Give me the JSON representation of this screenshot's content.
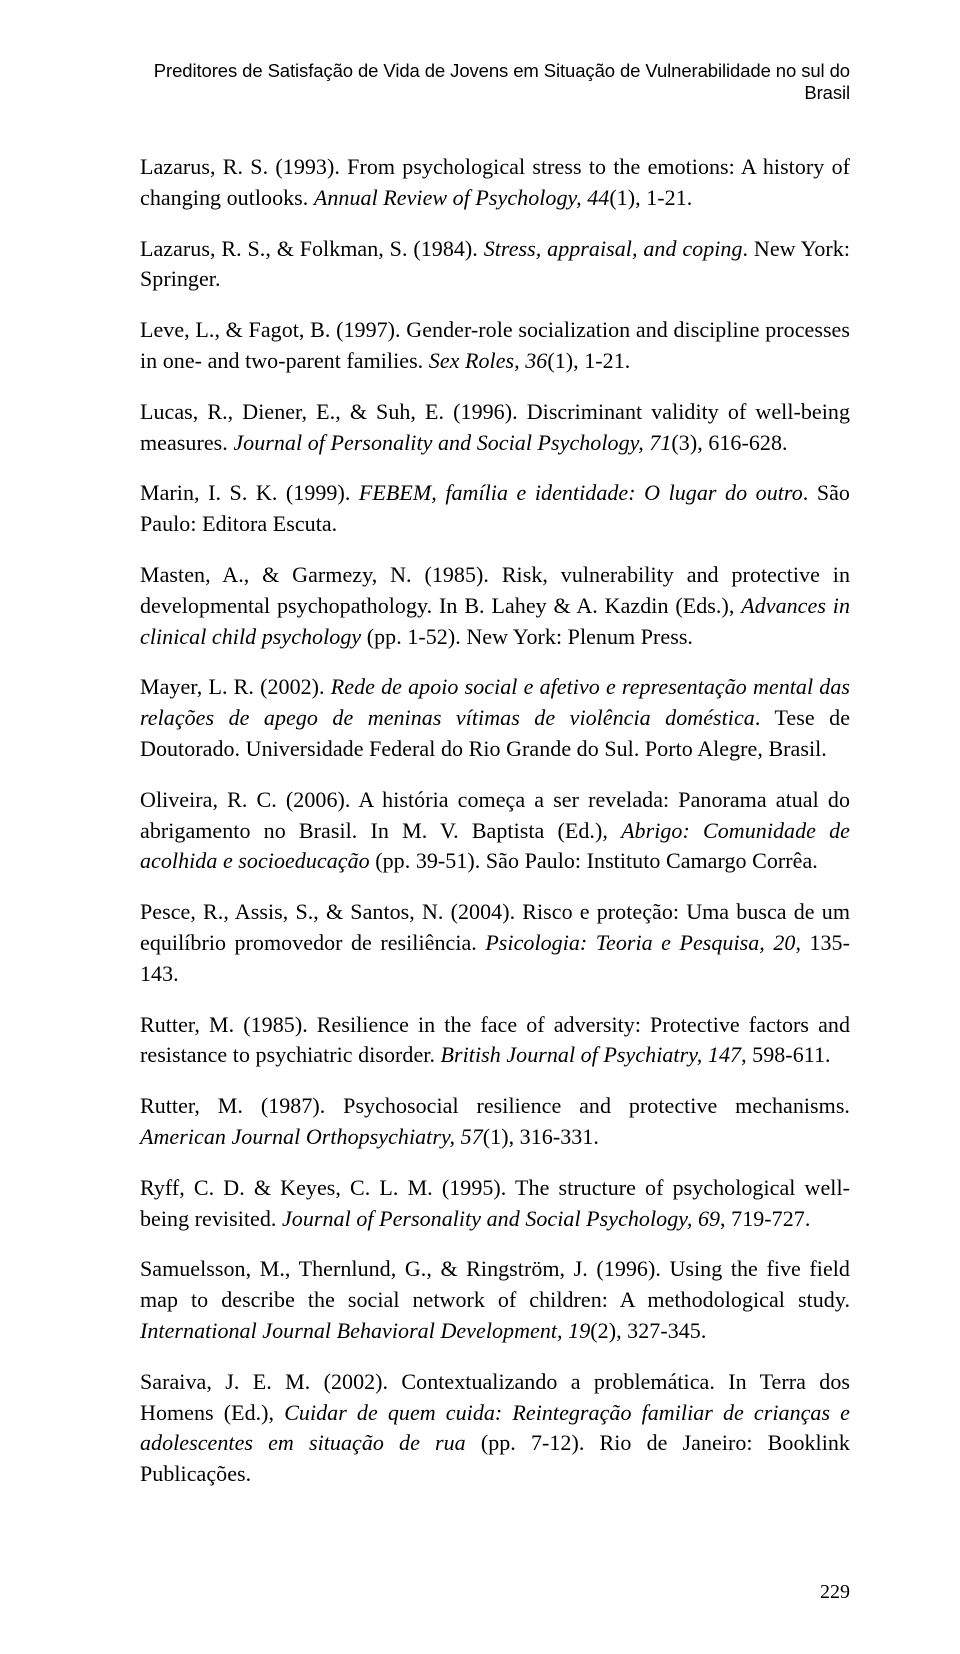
{
  "runningHeader": "Preditores de Satisfação de Vida de Jovens em Situação de Vulnerabilidade no sul do Brasil",
  "pageNumber": "229",
  "refs": [
    {
      "html": "Lazarus, R. S. (1993). From psychological stress to the emotions: A history of changing outlooks. <em>Annual Review of Psychology, 44</em>(1), 1-21."
    },
    {
      "html": "Lazarus, R. S., & Folkman, S. (1984). <em>Stress, appraisal, and coping</em>. New York: Springer."
    },
    {
      "html": "Leve, L., & Fagot, B. (1997). Gender-role socialization and discipline processes in one- and two-parent families. <em>Sex Roles, 36</em>(1), 1-21."
    },
    {
      "html": "Lucas, R., Diener, E., & Suh, E. (1996). Discriminant validity of well-being measures. <em>Journal of Personality and Social Psychology, 71</em>(3), 616-628."
    },
    {
      "html": "Marin, I. S. K. (1999). <em>FEBEM, família e identidade: O lugar do outro</em>. São Paulo: Editora Escuta."
    },
    {
      "html": "Masten, A., & Garmezy, N. (1985). Risk, vulnerability and protective in developmental psychopathology. In B. Lahey & A. Kazdin (Eds.), <em>Advances in clinical child psychology</em> (pp. 1-52). New York: Plenum Press."
    },
    {
      "html": "Mayer, L. R. (2002). <em>Rede de apoio social e afetivo e representação mental das relações de apego de meninas vítimas de violência doméstica</em>. Tese de Doutorado. Universidade Federal do Rio Grande do Sul. Porto Alegre, Brasil."
    },
    {
      "html": "Oliveira, R. C. (2006). A história começa a ser revelada: Panorama atual do abrigamento no Brasil. In M. V. Baptista (Ed.), <em>Abrigo: Comunidade de acolhida e socioeducação</em> (pp. 39-51). São Paulo: Instituto Camargo Corrêa."
    },
    {
      "html": "Pesce, R., Assis, S., & Santos, N. (2004). Risco e proteção: Uma busca de um equilíbrio promovedor de resiliência. <em>Psicologia: Teoria e Pesquisa, 20</em>, 135-143."
    },
    {
      "html": "Rutter, M. (1985). Resilience in the face of adversity: Protective factors and resistance to psychiatric disorder. <em>British Journal of Psychiatry, 147</em>, 598-611."
    },
    {
      "html": "Rutter, M. (1987). Psychosocial resilience and protective mechanisms. <em>American Journal Orthopsychiatry, 57</em>(1), 316-331."
    },
    {
      "html": "Ryff, C. D. & Keyes, C. L. M. (1995). The structure of psychological well-being revisited. <em>Journal of Personality and Social Psychology, 69</em>, 719-727."
    },
    {
      "html": "Samuelsson, M., Thernlund, G., & Ringström, J. (1996). Using the five field map to describe the social network of children: A methodological study. <em>International Journal Behavioral Development, 19</em>(2), 327-345."
    },
    {
      "html": "Saraiva, J. E. M. (2002). Contextualizando a problemática. In Terra dos Homens (Ed.), <em>Cuidar de quem cuida: Reintegração familiar de crianças e adolescentes em situação de rua</em> (pp. 7-12). Rio de Janeiro: Booklink Publicações."
    }
  ]
}
